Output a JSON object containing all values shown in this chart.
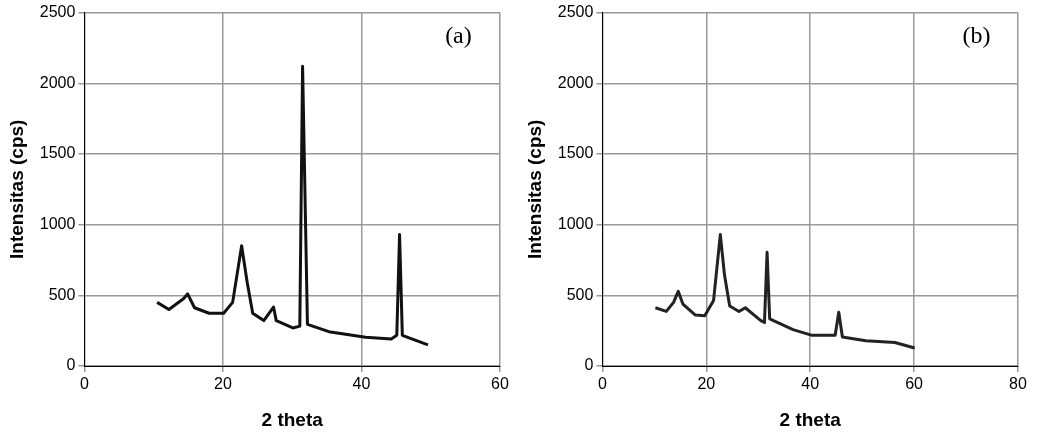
{
  "chart_data": [
    {
      "type": "line",
      "xlabel": "2 theta",
      "ylabel": "Intensitas (cps)",
      "annotations": [
        "(a)"
      ],
      "xlim": [
        0,
        60
      ],
      "xticks": [
        0,
        20,
        40,
        60
      ],
      "ylim": [
        0,
        2500
      ],
      "yticks": [
        0,
        500,
        1000,
        1500,
        2000,
        2500
      ],
      "grid": true,
      "legend": false,
      "marker": "none",
      "line_style": "solid",
      "series": [
        {
          "color": "#111111",
          "x": [
            10.5,
            12.2,
            14.3,
            14.9,
            15.9,
            18.0,
            20.1,
            21.4,
            22.7,
            23.5,
            24.3,
            25.9,
            27.3,
            27.7,
            30.1,
            31.1,
            31.5,
            32.2,
            35.3,
            40.6,
            44.3,
            45.1,
            45.5,
            45.9,
            49.6
          ],
          "values": [
            450,
            400,
            476,
            510,
            412,
            373,
            373,
            450,
            850,
            593,
            373,
            321,
            417,
            321,
            269,
            282,
            2120,
            295,
            243,
            204,
            191,
            217,
            930,
            217,
            150
          ]
        }
      ]
    },
    {
      "type": "line",
      "xlabel": "2 theta",
      "ylabel": "Intensitas (cps)",
      "annotations": [
        "(b)"
      ],
      "xlim": [
        0,
        80
      ],
      "xticks": [
        0,
        20,
        40,
        60,
        80
      ],
      "ylim": [
        0,
        2500
      ],
      "yticks": [
        0,
        500,
        1000,
        1500,
        2000,
        2500
      ],
      "grid": true,
      "legend": false,
      "marker": "none",
      "line_style": "solid",
      "series": [
        {
          "color": "#222222",
          "x": [
            10.2,
            12.3,
            13.7,
            14.6,
            15.5,
            17.9,
            19.7,
            21.4,
            22.7,
            23.5,
            24.5,
            26.3,
            27.5,
            30.5,
            31.2,
            31.7,
            32.2,
            36.7,
            40.2,
            44.8,
            45.5,
            46.2,
            50.7,
            56.3,
            60.1
          ],
          "values": [
            412,
            386,
            450,
            528,
            438,
            360,
            355,
            464,
            930,
            645,
            425,
            386,
            412,
            321,
            308,
            805,
            334,
            257,
            218,
            218,
            380,
            205,
            179,
            166,
            127
          ]
        }
      ]
    }
  ]
}
